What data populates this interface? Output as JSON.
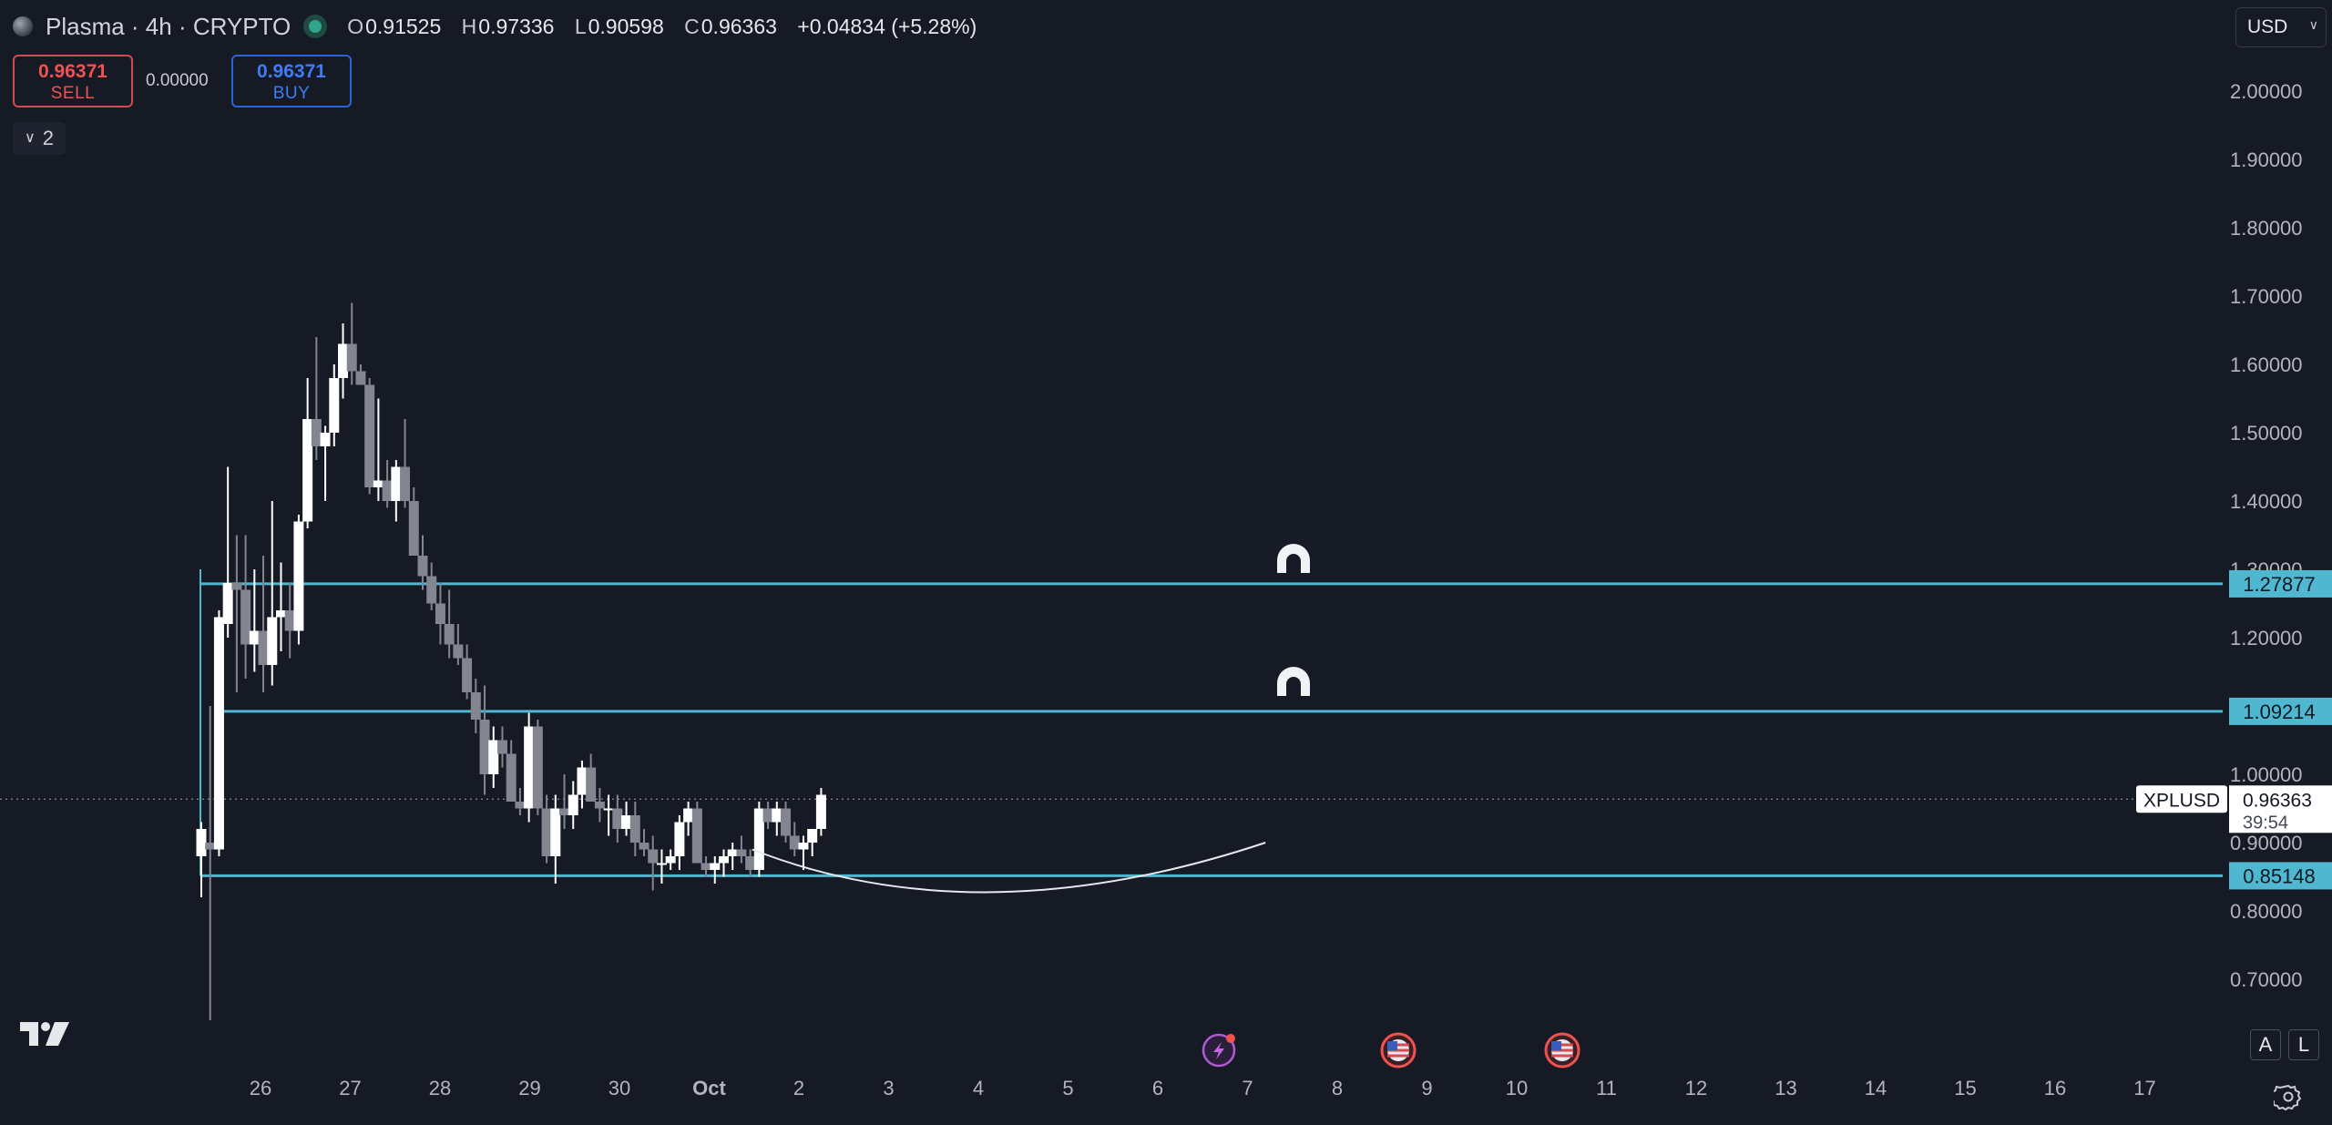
{
  "header": {
    "title": "Plasma · 4h · CRYPTO",
    "ohlc": [
      {
        "k": "O",
        "v": "0.91525"
      },
      {
        "k": "H",
        "v": "0.97336"
      },
      {
        "k": "L",
        "v": "0.90598"
      },
      {
        "k": "C",
        "v": "0.96363"
      }
    ],
    "change": "+0.04834 (+5.28%)"
  },
  "trade": {
    "sell_price": "0.96371",
    "sell_label": "SELL",
    "spread": "0.00000",
    "buy_price": "0.96371",
    "buy_label": "BUY"
  },
  "indicators_toggle": "2",
  "currency": "USD",
  "toolbar": {
    "auto_label": "A",
    "log_label": "L"
  },
  "colors": {
    "background": "#161a25",
    "bull": "#ffffff",
    "bear": "#838590",
    "hline": "#4fb7d0",
    "axis_text": "#b2b5be"
  },
  "icons": [
    "magnet-icon",
    "flash-event-icon",
    "us-flag-icon",
    "gear-icon",
    "tradingview-logo"
  ],
  "chart_data": {
    "type": "candlestick",
    "symbol": "XPLUSD",
    "last_price": "0.96363",
    "countdown": "39:54",
    "ylim": [
      0.62,
      2.1
    ],
    "y_ticks": [
      2.0,
      1.9,
      1.8,
      1.7,
      1.6,
      1.5,
      1.4,
      1.3,
      1.2,
      1.1,
      1.0,
      0.9,
      0.8,
      0.7
    ],
    "y_tick_labels": [
      "2.00000",
      "1.90000",
      "1.80000",
      "1.70000",
      "1.60000",
      "1.50000",
      "1.40000",
      "1.30000",
      "1.20000",
      "1.10000",
      "1.00000",
      "0.90000",
      "0.80000",
      "0.70000"
    ],
    "x_ticks": [
      {
        "label": "26",
        "day": 0
      },
      {
        "label": "27",
        "day": 1
      },
      {
        "label": "28",
        "day": 2
      },
      {
        "label": "29",
        "day": 3
      },
      {
        "label": "30",
        "day": 4
      },
      {
        "label": "Oct",
        "day": 5
      },
      {
        "label": "2",
        "day": 6
      },
      {
        "label": "3",
        "day": 7
      },
      {
        "label": "4",
        "day": 8
      },
      {
        "label": "5",
        "day": 9
      },
      {
        "label": "6",
        "day": 10
      },
      {
        "label": "7",
        "day": 11
      },
      {
        "label": "8",
        "day": 12
      },
      {
        "label": "9",
        "day": 13
      },
      {
        "label": "10",
        "day": 14
      },
      {
        "label": "11",
        "day": 15
      },
      {
        "label": "12",
        "day": 16
      },
      {
        "label": "13",
        "day": 17
      },
      {
        "label": "14",
        "day": 18
      },
      {
        "label": "15",
        "day": 19
      },
      {
        "label": "16",
        "day": 20
      },
      {
        "label": "17",
        "day": 21
      }
    ],
    "horizontal_lines": [
      {
        "price": 1.27877,
        "label": "1.27877"
      },
      {
        "price": 1.09214,
        "label": "1.09214"
      },
      {
        "price": 0.85148,
        "label": "0.85148"
      }
    ],
    "curve_points": [
      [
        5.5,
        0.89
      ],
      [
        8.0,
        0.83
      ],
      [
        10.0,
        0.85
      ],
      [
        11.2,
        0.9
      ]
    ],
    "candles": [
      [
        0.88,
        0.93,
        0.82,
        0.92
      ],
      [
        0.9,
        1.1,
        0.64,
        0.89
      ],
      [
        0.89,
        1.24,
        0.88,
        1.23
      ],
      [
        1.22,
        1.45,
        1.2,
        1.28
      ],
      [
        1.28,
        1.35,
        1.12,
        1.27
      ],
      [
        1.27,
        1.35,
        1.14,
        1.19
      ],
      [
        1.19,
        1.3,
        1.15,
        1.21
      ],
      [
        1.21,
        1.32,
        1.12,
        1.16
      ],
      [
        1.16,
        1.4,
        1.13,
        1.23
      ],
      [
        1.23,
        1.31,
        1.18,
        1.24
      ],
      [
        1.24,
        1.28,
        1.17,
        1.21
      ],
      [
        1.21,
        1.38,
        1.19,
        1.37
      ],
      [
        1.37,
        1.58,
        1.36,
        1.52
      ],
      [
        1.52,
        1.64,
        1.46,
        1.48
      ],
      [
        1.48,
        1.51,
        1.4,
        1.5
      ],
      [
        1.5,
        1.6,
        1.48,
        1.58
      ],
      [
        1.58,
        1.66,
        1.55,
        1.63
      ],
      [
        1.63,
        1.69,
        1.57,
        1.59
      ],
      [
        1.59,
        1.6,
        1.57,
        1.57
      ],
      [
        1.57,
        1.58,
        1.41,
        1.42
      ],
      [
        1.42,
        1.55,
        1.4,
        1.43
      ],
      [
        1.43,
        1.46,
        1.39,
        1.4
      ],
      [
        1.4,
        1.46,
        1.37,
        1.45
      ],
      [
        1.45,
        1.52,
        1.39,
        1.4
      ],
      [
        1.4,
        1.42,
        1.32,
        1.32
      ],
      [
        1.32,
        1.35,
        1.27,
        1.29
      ],
      [
        1.29,
        1.31,
        1.24,
        1.25
      ],
      [
        1.25,
        1.28,
        1.19,
        1.22
      ],
      [
        1.22,
        1.27,
        1.17,
        1.19
      ],
      [
        1.19,
        1.22,
        1.16,
        1.17
      ],
      [
        1.17,
        1.19,
        1.11,
        1.12
      ],
      [
        1.12,
        1.14,
        1.06,
        1.08
      ],
      [
        1.08,
        1.13,
        0.97,
        1.0
      ],
      [
        1.0,
        1.07,
        0.98,
        1.05
      ],
      [
        1.05,
        1.07,
        1.01,
        1.03
      ],
      [
        1.03,
        1.05,
        0.96,
        0.96
      ],
      [
        0.96,
        0.98,
        0.94,
        0.95
      ],
      [
        0.95,
        1.09,
        0.93,
        1.07
      ],
      [
        1.07,
        1.08,
        0.94,
        0.95
      ],
      [
        0.95,
        0.97,
        0.87,
        0.88
      ],
      [
        0.88,
        0.97,
        0.84,
        0.95
      ],
      [
        0.95,
        1.0,
        0.92,
        0.94
      ],
      [
        0.94,
        0.99,
        0.92,
        0.97
      ],
      [
        0.97,
        1.02,
        0.95,
        1.01
      ],
      [
        1.01,
        1.03,
        0.96,
        0.96
      ],
      [
        0.96,
        0.98,
        0.93,
        0.95
      ],
      [
        0.95,
        0.97,
        0.91,
        0.95
      ],
      [
        0.95,
        0.97,
        0.9,
        0.92
      ],
      [
        0.92,
        0.96,
        0.91,
        0.94
      ],
      [
        0.94,
        0.96,
        0.88,
        0.9
      ],
      [
        0.9,
        0.92,
        0.88,
        0.89
      ],
      [
        0.89,
        0.91,
        0.83,
        0.87
      ],
      [
        0.87,
        0.89,
        0.84,
        0.87
      ],
      [
        0.87,
        0.89,
        0.86,
        0.88
      ],
      [
        0.88,
        0.94,
        0.86,
        0.93
      ],
      [
        0.93,
        0.96,
        0.91,
        0.95
      ],
      [
        0.95,
        0.96,
        0.87,
        0.87
      ],
      [
        0.87,
        0.88,
        0.85,
        0.86
      ],
      [
        0.86,
        0.88,
        0.84,
        0.87
      ],
      [
        0.87,
        0.89,
        0.85,
        0.88
      ],
      [
        0.88,
        0.9,
        0.86,
        0.89
      ],
      [
        0.89,
        0.91,
        0.87,
        0.88
      ],
      [
        0.88,
        0.89,
        0.85,
        0.86
      ],
      [
        0.86,
        0.96,
        0.85,
        0.95
      ],
      [
        0.95,
        0.96,
        0.92,
        0.93
      ],
      [
        0.93,
        0.96,
        0.91,
        0.95
      ],
      [
        0.95,
        0.96,
        0.9,
        0.91
      ],
      [
        0.91,
        0.93,
        0.88,
        0.89
      ],
      [
        0.89,
        0.91,
        0.86,
        0.9
      ],
      [
        0.9,
        0.92,
        0.88,
        0.92
      ],
      [
        0.92,
        0.98,
        0.91,
        0.97
      ]
    ]
  }
}
